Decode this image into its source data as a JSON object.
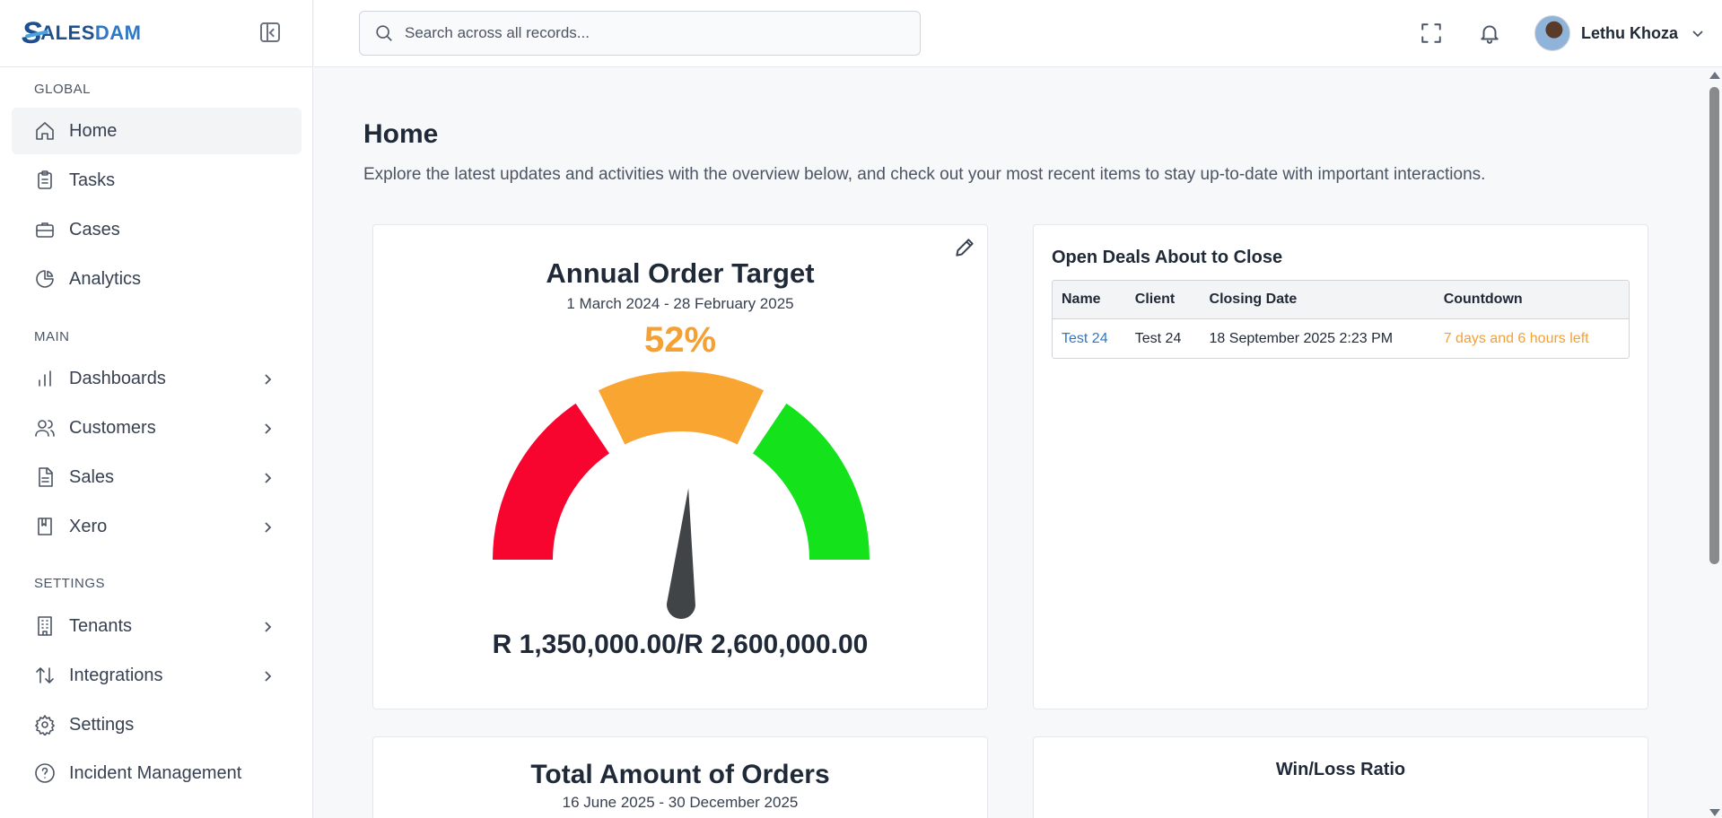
{
  "brand": {
    "logo_initial": "S",
    "logo_mid": "ALES",
    "logo_end": "DAM"
  },
  "sidebar": {
    "sections": [
      {
        "label": "GLOBAL"
      },
      {
        "label": "MAIN"
      },
      {
        "label": "SETTINGS"
      }
    ],
    "items": [
      {
        "label": "Home",
        "icon": "home-icon",
        "active": true
      },
      {
        "label": "Tasks",
        "icon": "clipboard-icon"
      },
      {
        "label": "Cases",
        "icon": "briefcase-icon"
      },
      {
        "label": "Analytics",
        "icon": "pie-chart-icon"
      },
      {
        "label": "Dashboards",
        "icon": "bar-chart-icon",
        "has_submenu": true
      },
      {
        "label": "Customers",
        "icon": "users-icon",
        "has_submenu": true
      },
      {
        "label": "Sales",
        "icon": "document-icon",
        "has_submenu": true
      },
      {
        "label": "Xero",
        "icon": "book-icon",
        "has_submenu": true
      },
      {
        "label": "Tenants",
        "icon": "building-icon",
        "has_submenu": true
      },
      {
        "label": "Integrations",
        "icon": "arrows-updown-icon",
        "has_submenu": true
      },
      {
        "label": "Settings",
        "icon": "gear-icon"
      },
      {
        "label": "Incident Management",
        "icon": "help-circle-icon"
      }
    ]
  },
  "topbar": {
    "search_placeholder": "Search across all records...",
    "user_name": "Lethu Khoza"
  },
  "page": {
    "title": "Home",
    "description": "Explore the latest updates and activities with the overview below, and check out your most recent items to stay up-to-date with important interactions."
  },
  "target_card": {
    "title": "Annual Order Target",
    "period": "1 March 2024 - 28 February 2025",
    "percent_label": "52%",
    "progress": 0.52,
    "total_label": "R 1,350,000.00/R 2,600,000.00",
    "colors": {
      "low": "#f8052f",
      "mid": "#f9a532",
      "high": "#14e31c",
      "needle": "#414446"
    }
  },
  "deals_card": {
    "title": "Open Deals About to Close",
    "columns": [
      "Name",
      "Client",
      "Closing Date",
      "Countdown"
    ],
    "rows": [
      {
        "name": "Test 24",
        "client": "Test 24",
        "closing_date": "18 September 2025 2:23 PM",
        "countdown": "7 days and 6 hours left"
      }
    ]
  },
  "orders_card": {
    "title": "Total Amount of Orders",
    "period": "16 June 2025 - 30 December 2025"
  },
  "winloss_card": {
    "title": "Win/Loss Ratio"
  }
}
